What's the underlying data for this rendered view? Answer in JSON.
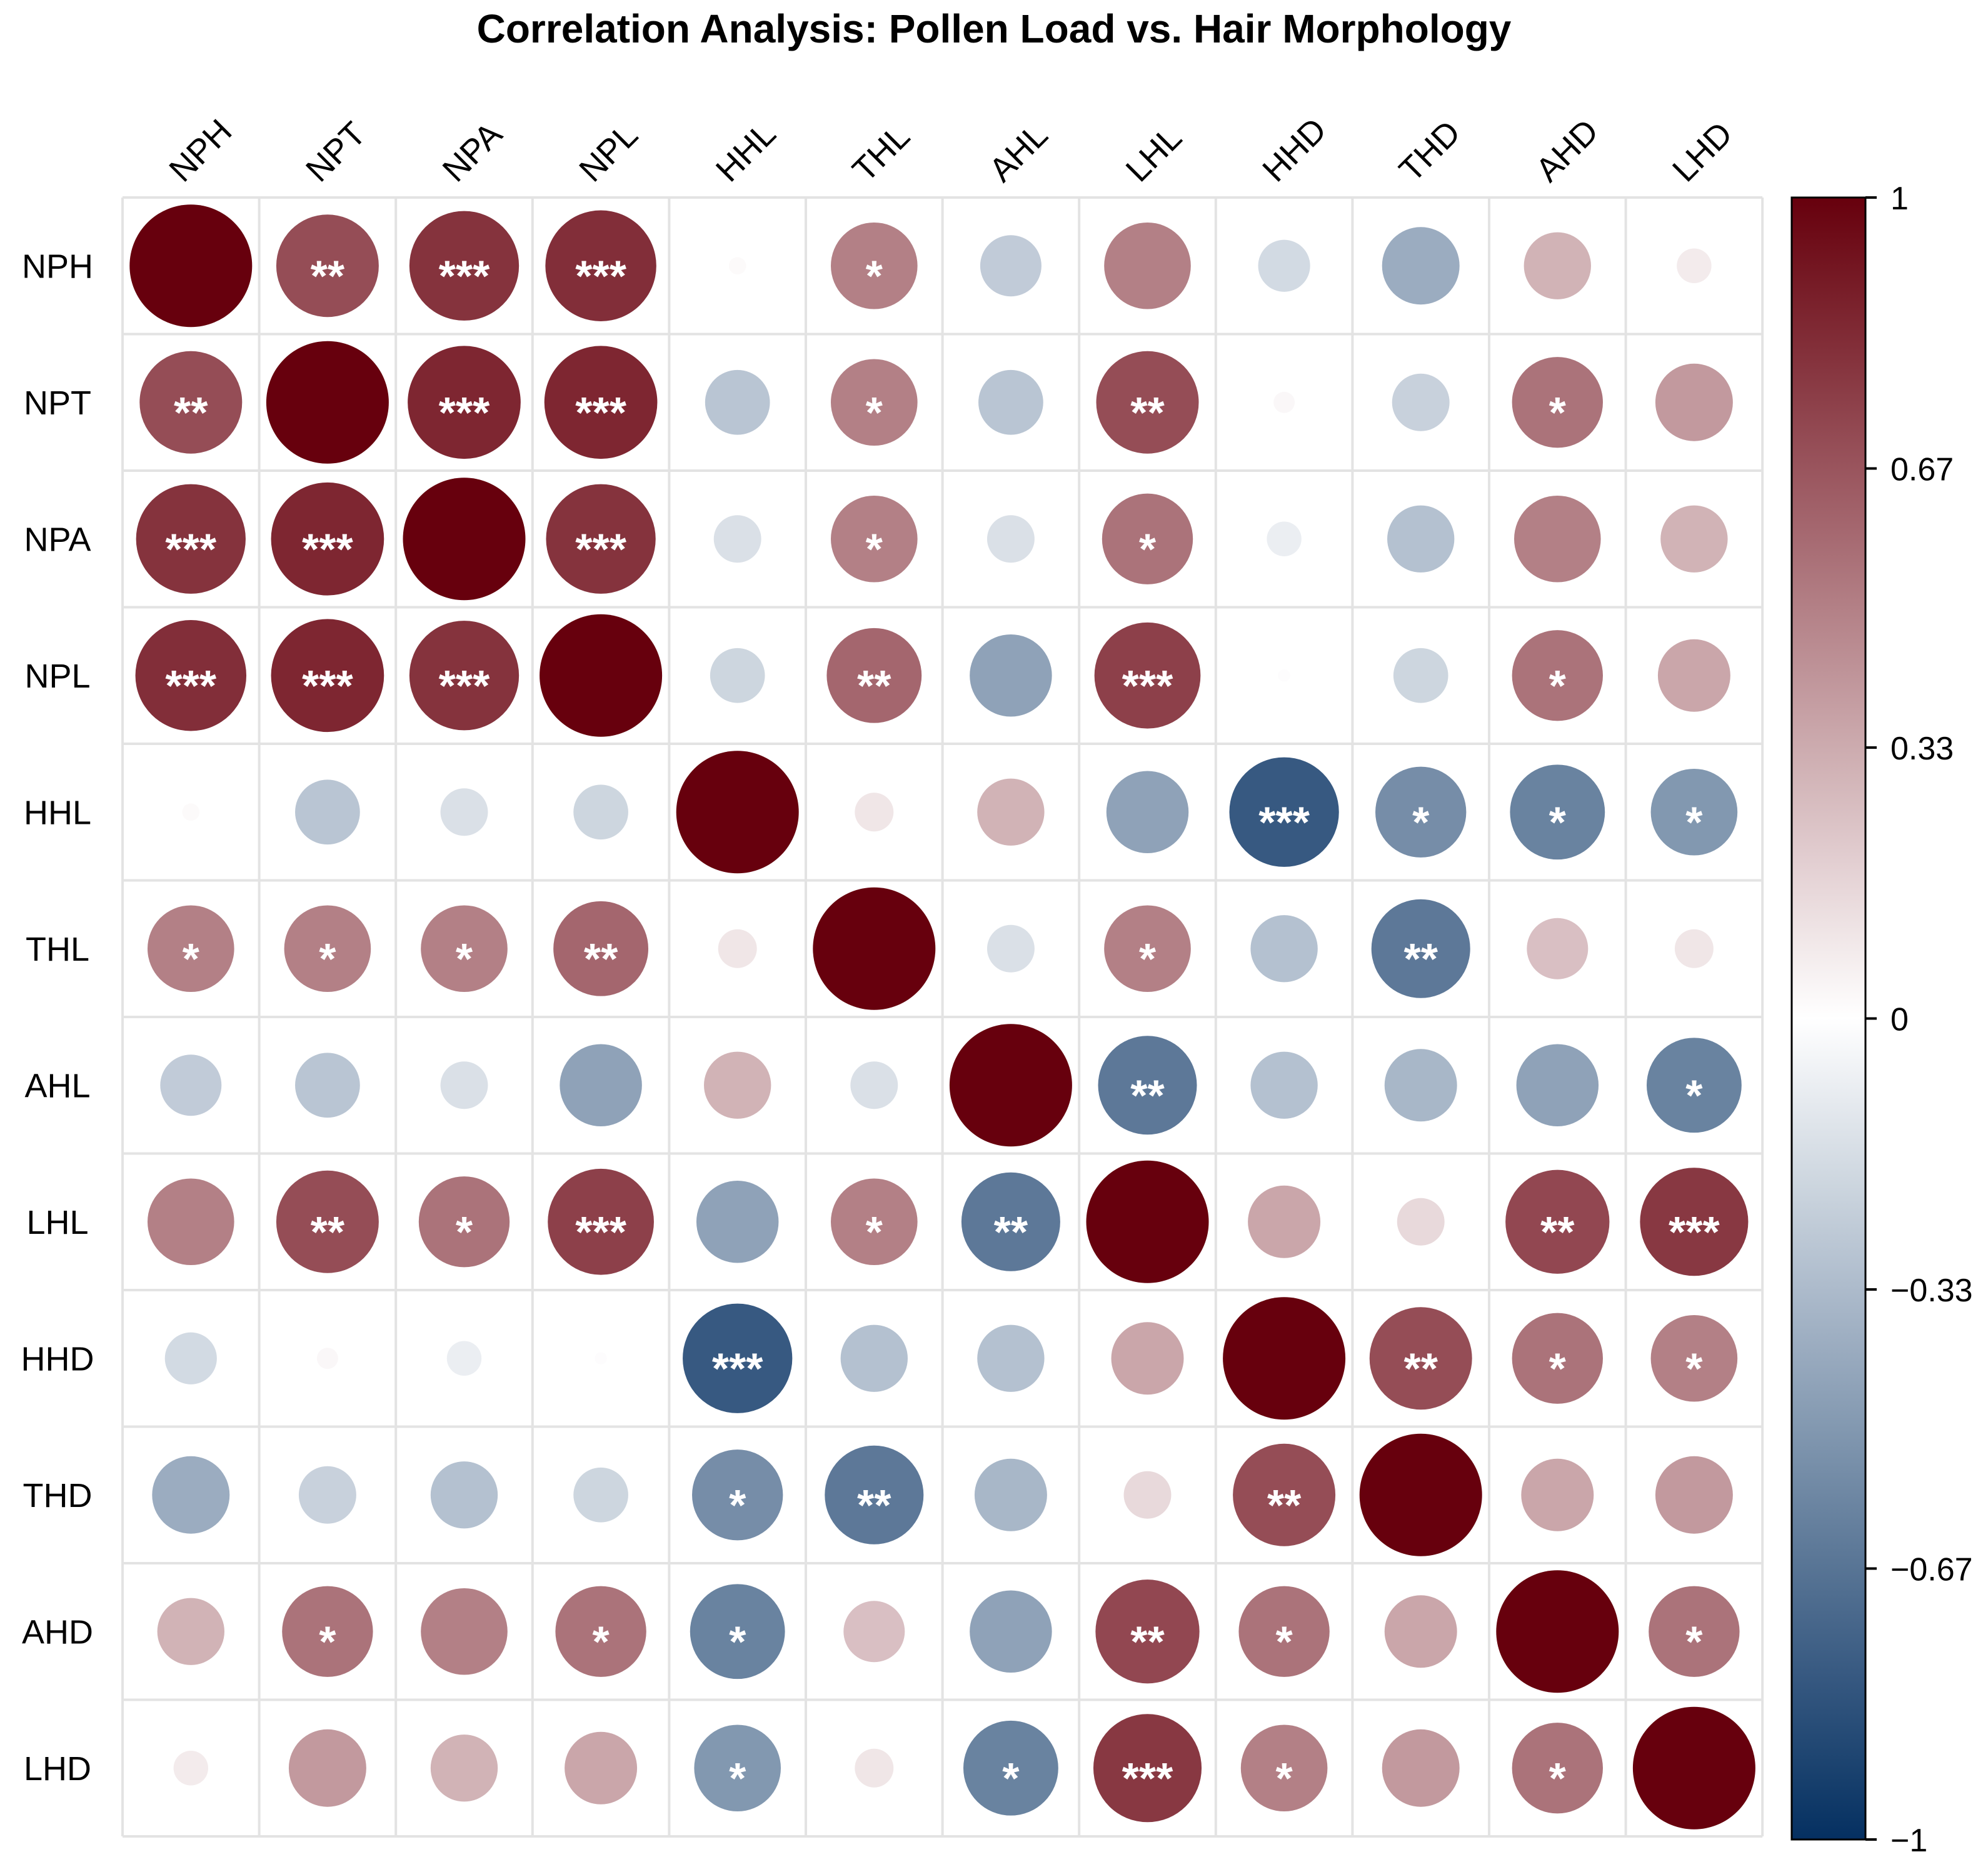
{
  "chart_data": {
    "type": "heatmap",
    "style": "circle correlation matrix",
    "title": "Correlation Analysis: Pollen Load vs. Hair Morphology",
    "variables": [
      "NPH",
      "NPT",
      "NPA",
      "NPL",
      "HHL",
      "THL",
      "AHL",
      "LHL",
      "HHD",
      "THD",
      "AHD",
      "LHD"
    ],
    "matrix": [
      [
        1.0,
        0.7,
        0.8,
        0.82,
        0.02,
        0.5,
        -0.25,
        0.5,
        -0.18,
        -0.4,
        0.3,
        0.08
      ],
      [
        0.7,
        1.0,
        0.85,
        0.85,
        -0.28,
        0.5,
        -0.28,
        0.7,
        0.03,
        -0.22,
        0.55,
        0.4
      ],
      [
        0.8,
        0.85,
        1.0,
        0.8,
        -0.15,
        0.5,
        -0.15,
        0.55,
        -0.08,
        -0.3,
        0.5,
        0.3
      ],
      [
        0.82,
        0.85,
        0.8,
        1.0,
        -0.2,
        0.6,
        -0.45,
        0.75,
        0.01,
        -0.2,
        0.55,
        0.35
      ],
      [
        0.02,
        -0.28,
        -0.15,
        -0.2,
        1.0,
        0.1,
        0.3,
        -0.45,
        -0.8,
        -0.55,
        -0.6,
        -0.5
      ],
      [
        0.5,
        0.5,
        0.5,
        0.6,
        0.1,
        1.0,
        -0.15,
        0.5,
        -0.3,
        -0.65,
        0.25,
        0.1
      ],
      [
        -0.25,
        -0.28,
        -0.15,
        -0.45,
        0.3,
        -0.15,
        1.0,
        -0.65,
        -0.3,
        -0.35,
        -0.45,
        -0.6
      ],
      [
        0.5,
        0.7,
        0.55,
        0.75,
        -0.45,
        0.5,
        -0.65,
        1.0,
        0.35,
        0.15,
        0.72,
        0.78
      ],
      [
        -0.18,
        0.03,
        -0.08,
        0.01,
        -0.8,
        -0.3,
        -0.3,
        0.35,
        1.0,
        0.7,
        0.55,
        0.5
      ],
      [
        -0.4,
        -0.22,
        -0.3,
        -0.2,
        -0.55,
        -0.65,
        -0.35,
        0.15,
        0.7,
        1.0,
        0.35,
        0.4
      ],
      [
        0.3,
        0.55,
        0.5,
        0.55,
        -0.6,
        0.25,
        -0.45,
        0.72,
        0.55,
        0.35,
        1.0,
        0.55
      ],
      [
        0.08,
        0.4,
        0.3,
        0.35,
        -0.5,
        0.1,
        -0.6,
        0.78,
        0.5,
        0.4,
        0.55,
        1.0
      ]
    ],
    "significance": [
      [
        "",
        "**",
        "***",
        "***",
        "",
        "*",
        "",
        "",
        "",
        "",
        "",
        ""
      ],
      [
        "**",
        "",
        "***",
        "***",
        "",
        "*",
        "",
        "**",
        "",
        "",
        "*",
        ""
      ],
      [
        "***",
        "***",
        "",
        "***",
        "",
        "*",
        "",
        "*",
        "",
        "",
        "",
        ""
      ],
      [
        "***",
        "***",
        "***",
        "",
        "",
        "**",
        "",
        "***",
        "",
        "",
        "*",
        ""
      ],
      [
        "",
        "",
        "",
        "",
        "",
        "",
        "",
        "",
        "***",
        "*",
        "*",
        "*"
      ],
      [
        "*",
        "*",
        "*",
        "**",
        "",
        "",
        "",
        "*",
        "",
        "**",
        "",
        ""
      ],
      [
        "",
        "",
        "",
        "",
        "",
        "",
        "",
        "**",
        "",
        "",
        "",
        "*"
      ],
      [
        "",
        "**",
        "*",
        "***",
        "",
        "*",
        "**",
        "",
        "",
        "",
        "**",
        "***"
      ],
      [
        "",
        "",
        "",
        "",
        "***",
        "",
        "",
        "",
        "",
        "**",
        "*",
        "*"
      ],
      [
        "",
        "",
        "",
        "",
        "*",
        "**",
        "",
        "",
        "**",
        "",
        "",
        ""
      ],
      [
        "",
        "*",
        "",
        "*",
        "*",
        "",
        "",
        "**",
        "*",
        "",
        "",
        "*"
      ],
      [
        "",
        "",
        "",
        "",
        "*",
        "",
        "*",
        "***",
        "*",
        "",
        "*",
        ""
      ]
    ],
    "legend": {
      "range": [
        -1,
        1
      ],
      "ticks": [
        "1",
        "0.67",
        "0.33",
        "0",
        "−0.33",
        "−0.67",
        "−1"
      ],
      "tick_values": [
        1,
        0.67,
        0.33,
        0,
        -0.33,
        -0.67,
        -1
      ],
      "placement": "right"
    },
    "colors": {
      "positive": "#67000d",
      "neutral": "#ffffff",
      "negative": "#053061",
      "grid": "#e3e3e3",
      "star_on_dark": "#ffffff",
      "star_on_light": "#000000"
    }
  }
}
